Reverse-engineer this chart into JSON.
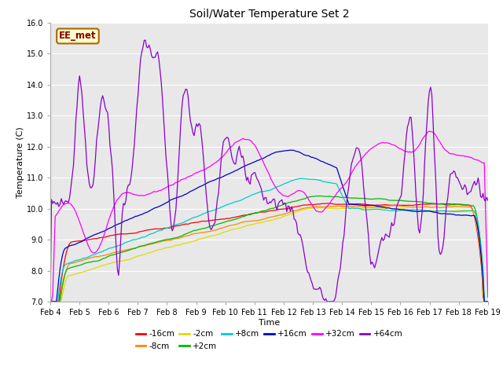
{
  "title": "Soil/Water Temperature Set 2",
  "xlabel": "Time",
  "ylabel": "Temperature (C)",
  "ylim": [
    7.0,
    16.0
  ],
  "yticks": [
    7.0,
    8.0,
    9.0,
    10.0,
    11.0,
    12.0,
    13.0,
    14.0,
    15.0,
    16.0
  ],
  "xtick_labels": [
    "Feb 4",
    "Feb 5",
    "Feb 6",
    "Feb 7",
    "Feb 8",
    "Feb 9",
    "Feb 10",
    "Feb 11",
    "Feb 12",
    "Feb 13",
    "Feb 14",
    "Feb 15",
    "Feb 16",
    "Feb 17",
    "Feb 18",
    "Feb 19"
  ],
  "annotation_text": "EE_met",
  "annotation_bg": "#ffffcc",
  "annotation_border": "#aa6600",
  "annotation_text_color": "#880000",
  "plot_bg": "#e8e8e8",
  "series": [
    {
      "label": "-16cm",
      "color": "#ff0000"
    },
    {
      "label": "-8cm",
      "color": "#ff8800"
    },
    {
      "label": "-2cm",
      "color": "#dddd00"
    },
    {
      "label": "+2cm",
      "color": "#00bb00"
    },
    {
      "label": "+8cm",
      "color": "#00cccc"
    },
    {
      "label": "+16cm",
      "color": "#0000cc"
    },
    {
      "label": "+32cm",
      "color": "#ff00ff"
    },
    {
      "label": "+64cm",
      "color": "#8800cc"
    }
  ]
}
